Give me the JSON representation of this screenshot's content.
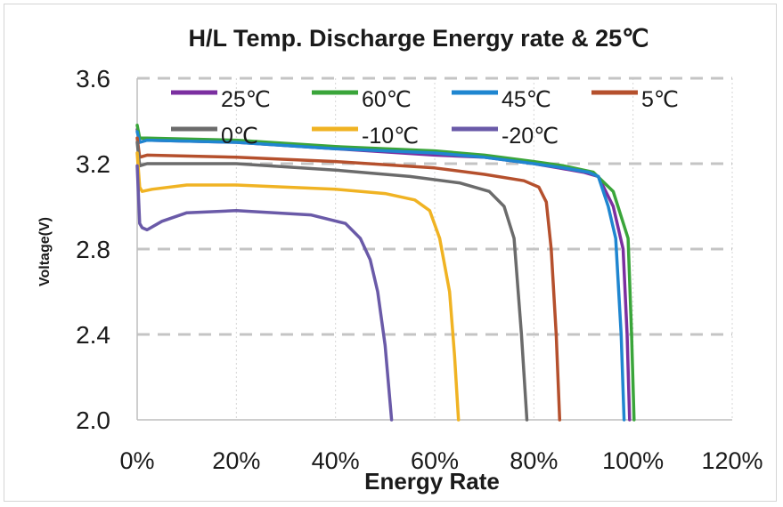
{
  "chart_data": {
    "type": "line",
    "title": "H/L Temp. Discharge Energy rate & 25℃",
    "xlabel": "Energy Rate",
    "ylabel": "Voltage(V)",
    "xlim": [
      0,
      120
    ],
    "ylim": [
      2.0,
      3.6
    ],
    "x_tick_labels": [
      "0%",
      "20%",
      "40%",
      "60%",
      "80%",
      "100%",
      "120%"
    ],
    "y_tick_labels": [
      "2.0",
      "2.4",
      "2.8",
      "3.2",
      "3.6"
    ],
    "grid": {
      "horizontal": "dashed",
      "vertical": "dotted"
    },
    "legend_position": "top",
    "series": [
      {
        "name": "25℃",
        "color": "#7b2fa0",
        "points": [
          [
            0,
            3.36
          ],
          [
            0.5,
            3.3
          ],
          [
            2,
            3.31
          ],
          [
            20,
            3.3
          ],
          [
            40,
            3.27
          ],
          [
            60,
            3.24
          ],
          [
            70,
            3.23
          ],
          [
            80,
            3.2
          ],
          [
            85,
            3.18
          ],
          [
            90,
            3.16
          ],
          [
            93,
            3.14
          ],
          [
            96,
            3.0
          ],
          [
            98,
            2.8
          ],
          [
            98.8,
            2.4
          ],
          [
            99.3,
            2.0
          ]
        ]
      },
      {
        "name": "60℃",
        "color": "#3aa53a",
        "points": [
          [
            0,
            3.38
          ],
          [
            0.5,
            3.32
          ],
          [
            2,
            3.32
          ],
          [
            20,
            3.31
          ],
          [
            40,
            3.28
          ],
          [
            60,
            3.26
          ],
          [
            70,
            3.24
          ],
          [
            80,
            3.21
          ],
          [
            86,
            3.19
          ],
          [
            92,
            3.16
          ],
          [
            96,
            3.07
          ],
          [
            99,
            2.85
          ],
          [
            99.7,
            2.4
          ],
          [
            100.2,
            2.0
          ]
        ]
      },
      {
        "name": "45℃",
        "color": "#1f86d0",
        "points": [
          [
            0,
            3.35
          ],
          [
            0.5,
            3.3
          ],
          [
            2,
            3.31
          ],
          [
            20,
            3.3
          ],
          [
            40,
            3.27
          ],
          [
            60,
            3.25
          ],
          [
            70,
            3.23
          ],
          [
            80,
            3.2
          ],
          [
            86,
            3.18
          ],
          [
            91,
            3.16
          ],
          [
            93,
            3.14
          ],
          [
            95,
            3.0
          ],
          [
            96.5,
            2.85
          ],
          [
            97.6,
            2.4
          ],
          [
            98.2,
            2.0
          ]
        ]
      },
      {
        "name": "5℃",
        "color": "#b5502d",
        "points": [
          [
            0,
            3.32
          ],
          [
            0.5,
            3.23
          ],
          [
            2,
            3.24
          ],
          [
            20,
            3.23
          ],
          [
            40,
            3.21
          ],
          [
            60,
            3.18
          ],
          [
            70,
            3.15
          ],
          [
            78,
            3.12
          ],
          [
            81,
            3.09
          ],
          [
            82.5,
            3.02
          ],
          [
            83.5,
            2.8
          ],
          [
            84.5,
            2.4
          ],
          [
            85.2,
            2.0
          ]
        ]
      },
      {
        "name": "0℃",
        "color": "#6b6b6b",
        "points": [
          [
            0,
            3.3
          ],
          [
            0.5,
            3.19
          ],
          [
            2,
            3.2
          ],
          [
            20,
            3.2
          ],
          [
            40,
            3.17
          ],
          [
            55,
            3.14
          ],
          [
            65,
            3.11
          ],
          [
            71,
            3.07
          ],
          [
            74,
            3.0
          ],
          [
            76,
            2.85
          ],
          [
            77.5,
            2.4
          ],
          [
            78.6,
            2.0
          ]
        ]
      },
      {
        "name": "-10℃",
        "color": "#f0b323",
        "points": [
          [
            0,
            3.25
          ],
          [
            0.5,
            3.09
          ],
          [
            1,
            3.07
          ],
          [
            3,
            3.08
          ],
          [
            10,
            3.1
          ],
          [
            20,
            3.1
          ],
          [
            40,
            3.08
          ],
          [
            50,
            3.06
          ],
          [
            56,
            3.03
          ],
          [
            59,
            2.98
          ],
          [
            61,
            2.85
          ],
          [
            63,
            2.6
          ],
          [
            64,
            2.3
          ],
          [
            64.8,
            2.0
          ]
        ]
      },
      {
        "name": "-20℃",
        "color": "#6a5aa8",
        "points": [
          [
            0,
            3.19
          ],
          [
            0.5,
            2.92
          ],
          [
            1,
            2.9
          ],
          [
            2,
            2.89
          ],
          [
            5,
            2.93
          ],
          [
            10,
            2.97
          ],
          [
            20,
            2.98
          ],
          [
            35,
            2.96
          ],
          [
            42,
            2.92
          ],
          [
            45,
            2.85
          ],
          [
            47,
            2.75
          ],
          [
            48.5,
            2.6
          ],
          [
            50,
            2.35
          ],
          [
            51.3,
            2.0
          ]
        ]
      }
    ]
  }
}
